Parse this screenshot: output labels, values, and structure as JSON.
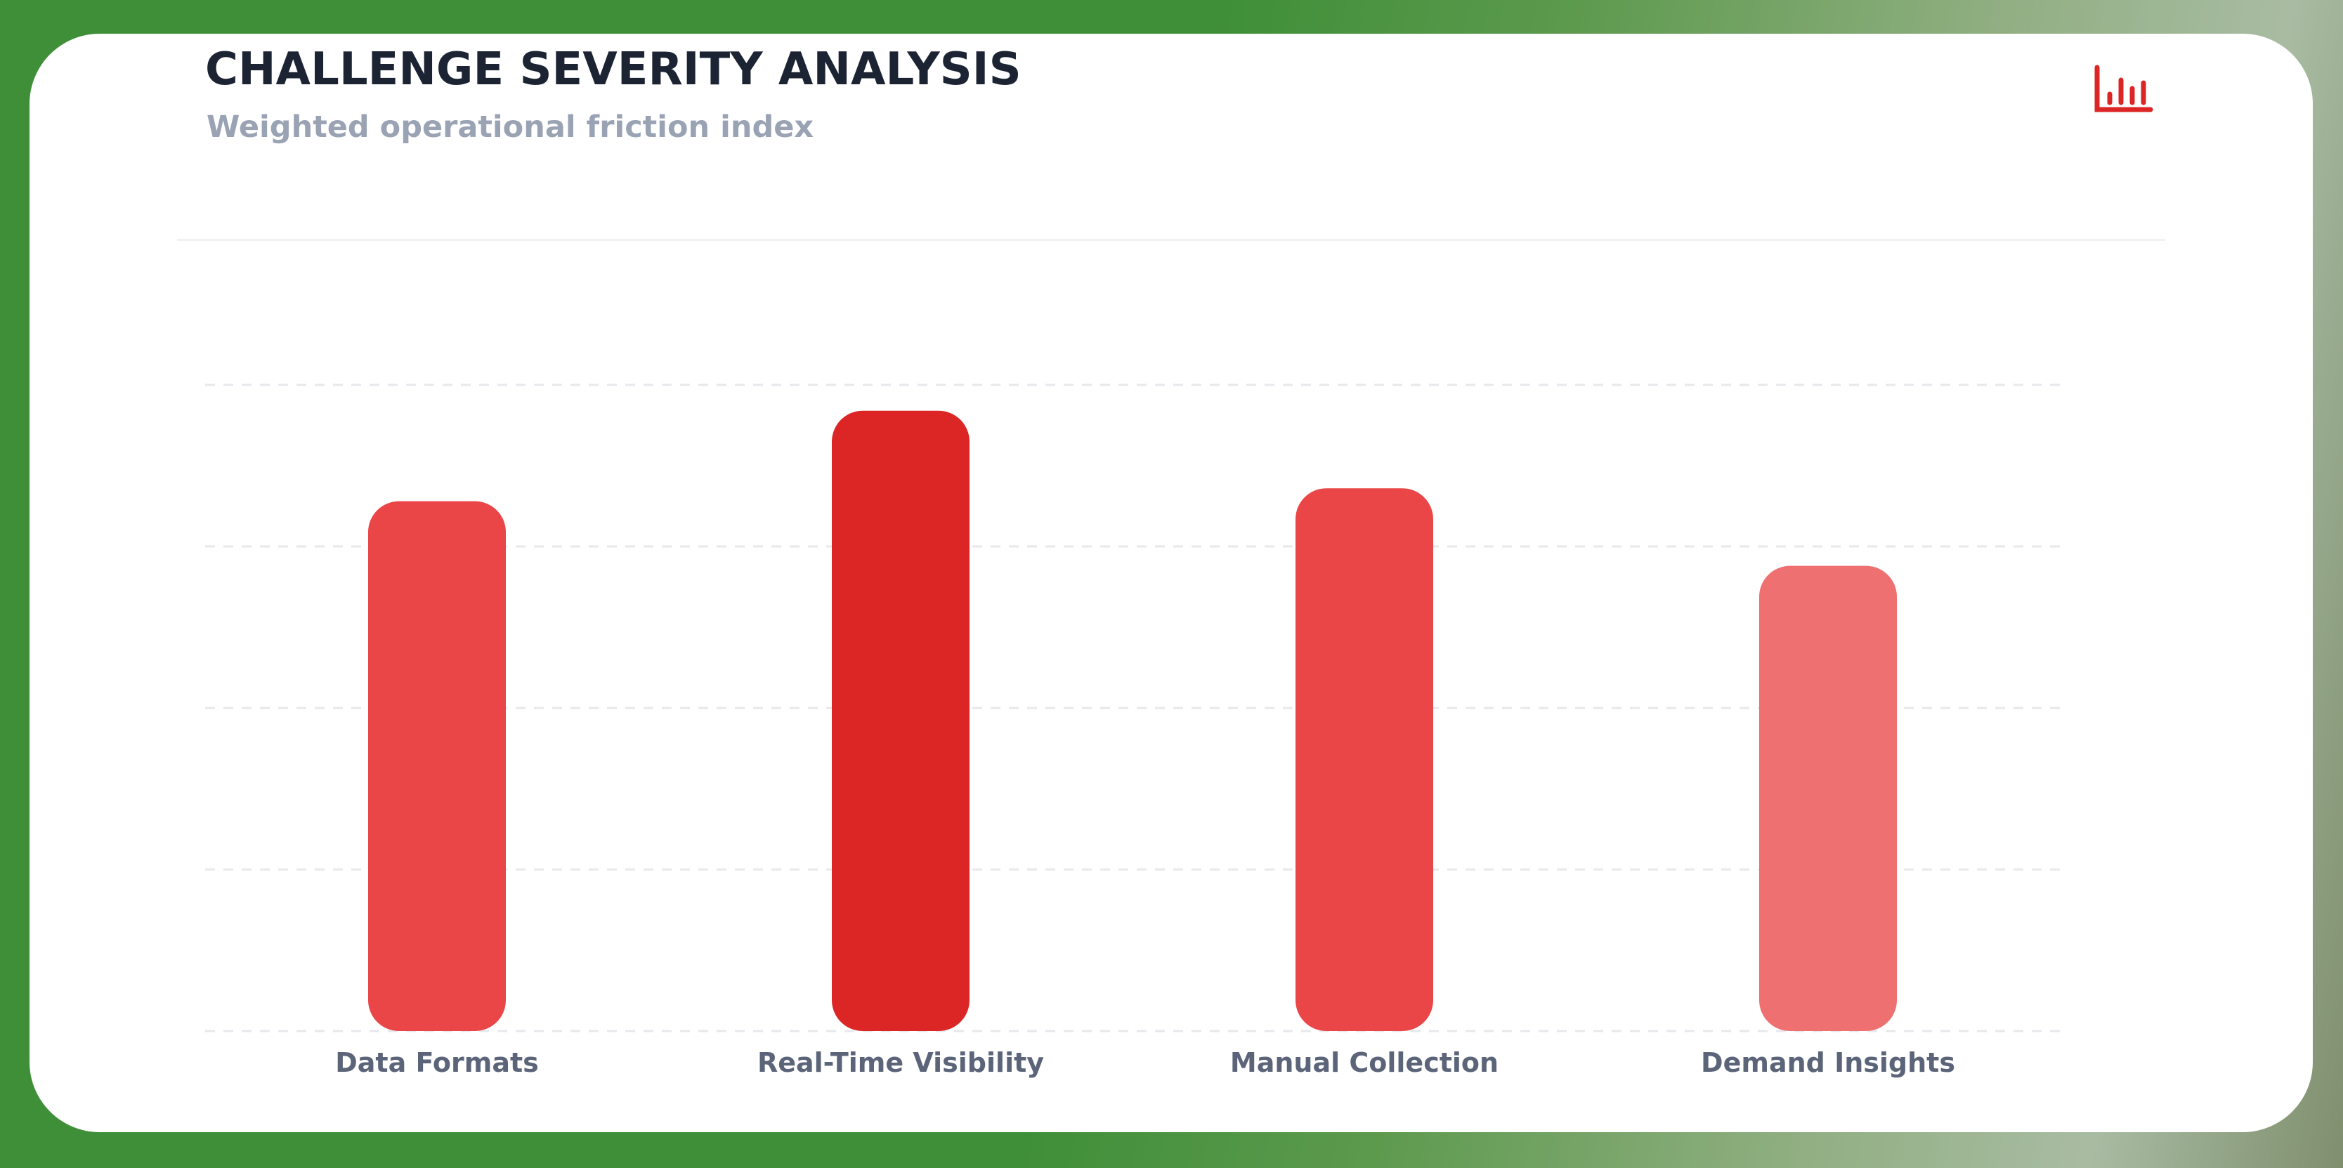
{
  "header": {
    "title": "CHALLENGE SEVERITY ANALYSIS",
    "subtitle": "Weighted operational friction index",
    "icon": "bar-chart-icon"
  },
  "colors": {
    "title": "#1c2434",
    "subtitle": "#9aa3b4",
    "icon": "#dc2626",
    "label": "#5b6478",
    "grid": "#e6e8ec"
  },
  "chart_data": {
    "type": "bar",
    "title": "CHALLENGE SEVERITY ANALYSIS",
    "subtitle": "Weighted operational friction index",
    "categories": [
      "Data Formats",
      "Real-Time Visibility",
      "Manual Collection",
      "Demand Insights"
    ],
    "values": [
      82,
      96,
      84,
      72
    ],
    "bar_colors": [
      "#ea4547",
      "#dc2626",
      "#ea4547",
      "#ee7071"
    ],
    "ylim": [
      0,
      100
    ],
    "grid": true,
    "grid_style": "dashed",
    "xlabel": "",
    "ylabel": ""
  }
}
